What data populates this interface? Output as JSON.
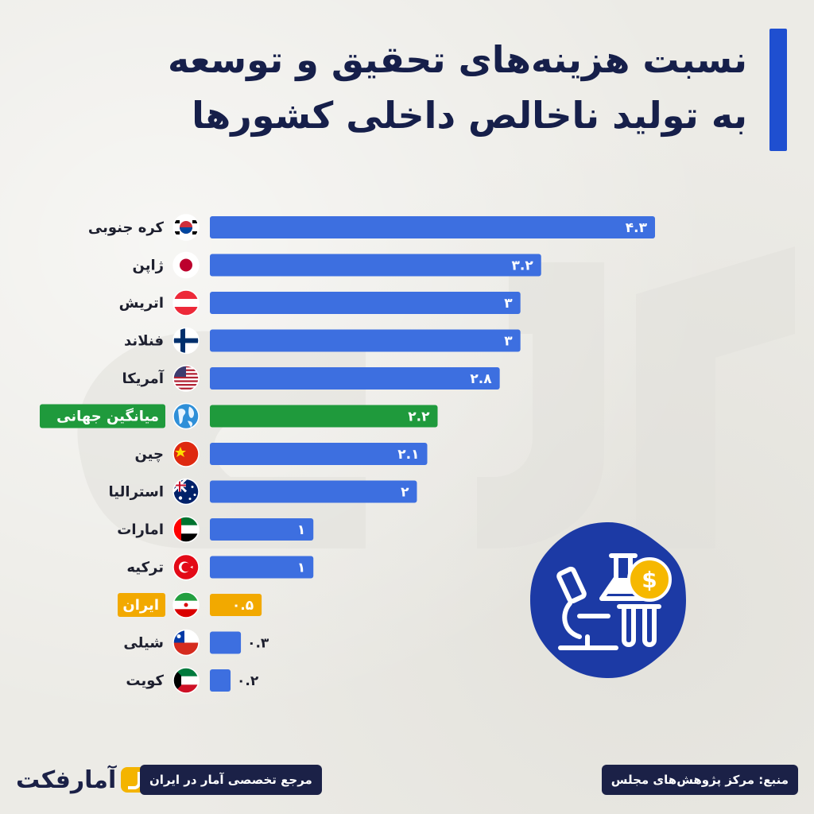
{
  "title": {
    "line1": "نسبت هزینه‌های تحقیق و توسعه",
    "line2": "به تولید ناخالص داخلی کشورها"
  },
  "colors": {
    "bar": "#3d6fe0",
    "highlight_world": "#1f9a3c",
    "highlight_iran": "#f2a900",
    "title": "#161f4a",
    "accent": "#1f4fd0",
    "badge": "#1c3aa5"
  },
  "chart_data": {
    "type": "bar",
    "orientation": "horizontal",
    "title": "نسبت هزینه‌های تحقیق و توسعه به تولید ناخالص داخلی کشورها",
    "categories": [
      "کره جنوبی",
      "ژاپن",
      "اتریش",
      "فنلاند",
      "آمریکا",
      "میانگین جهانی",
      "چین",
      "استرالیا",
      "امارات",
      "ترکیه",
      "ایران",
      "شیلی",
      "کویت"
    ],
    "values": [
      4.3,
      3.2,
      3,
      3,
      2.8,
      2.2,
      2.1,
      2,
      1,
      1,
      0.5,
      0.3,
      0.2
    ],
    "value_labels": [
      "۴.۳",
      "۳.۲",
      "۳",
      "۳",
      "۲.۸",
      "۲.۲",
      "۲.۱",
      "۲",
      "۱",
      "۱",
      "۰.۵",
      "۰.۳",
      "۰.۲"
    ],
    "highlights": {
      "میانگین جهانی": "green",
      "ایران": "orange"
    },
    "flags": [
      "south-korea-flag",
      "japan-flag",
      "austria-flag",
      "finland-flag",
      "usa-flag",
      "globe-icon",
      "china-flag",
      "australia-flag",
      "uae-flag",
      "turkey-flag",
      "iran-flag",
      "chile-flag",
      "kuwait-flag"
    ],
    "xlim": [
      0,
      4.3
    ]
  },
  "footer": {
    "source": "منبع: مرکز پژوهش‌های مجلس",
    "reference": "مرجع تخصصی آمار در ایران",
    "brand": "آمارفکت"
  },
  "badge_icon": "lab-science-icon"
}
